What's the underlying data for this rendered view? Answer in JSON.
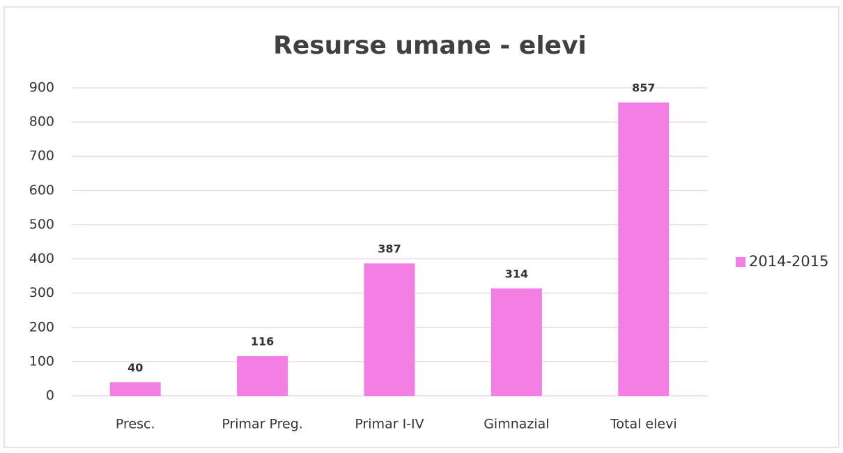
{
  "chart_data": {
    "type": "bar",
    "title": "Resurse umane - elevi",
    "categories": [
      "Presc.",
      "Primar Preg.",
      "Primar I-IV",
      "Gimnazial",
      "Total elevi"
    ],
    "series": [
      {
        "name": "2014-2015",
        "color": "#f47fe4",
        "values": [
          40,
          116,
          387,
          314,
          857
        ]
      }
    ],
    "ylim": [
      0,
      900
    ],
    "yticks": [
      0,
      100,
      200,
      300,
      400,
      500,
      600,
      700,
      800,
      900
    ],
    "grid": true,
    "legend": "right",
    "data_labels": true
  }
}
